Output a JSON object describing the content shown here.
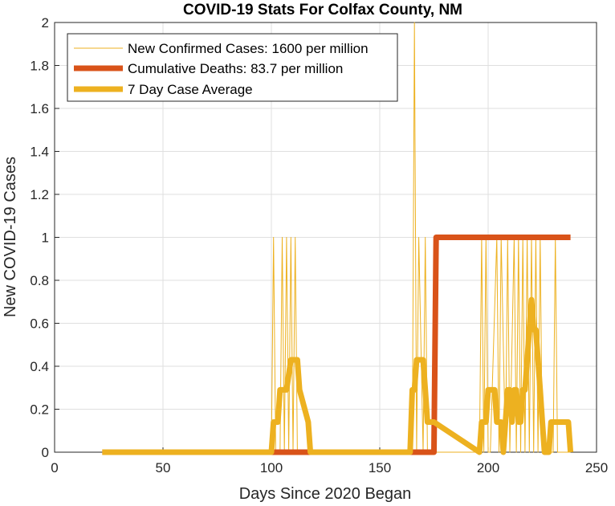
{
  "chart_data": {
    "type": "line",
    "title": "COVID-19 Stats For Colfax County, NM",
    "xlabel": "Days Since 2020 Began",
    "ylabel": "New COVID-19 Cases",
    "xlim": [
      0,
      250
    ],
    "ylim": [
      0,
      2
    ],
    "xticks": [
      0,
      50,
      100,
      150,
      200,
      250
    ],
    "xtick_labels": [
      "0",
      "50",
      "100",
      "150",
      "200",
      "250"
    ],
    "yticks": [
      0,
      0.2,
      0.4,
      0.6,
      0.8,
      1,
      1.2,
      1.4,
      1.6,
      1.8,
      2
    ],
    "ytick_labels": [
      "0",
      "0.2",
      "0.4",
      "0.6",
      "0.8",
      "1",
      "1.2",
      "1.4",
      "1.6",
      "1.8",
      "2"
    ],
    "grid": true,
    "legend_position": "top-left",
    "series": [
      {
        "name": "New Confirmed Cases: 1600 per million",
        "color": "#EDB120",
        "style": "thin",
        "x": [
          22,
          100,
          101,
          102,
          104,
          105,
          106,
          107,
          108,
          109,
          110,
          111,
          112,
          165,
          166,
          167,
          168,
          170,
          171,
          172,
          196,
          197,
          198,
          199,
          200,
          201,
          204,
          205,
          206,
          208,
          209,
          210,
          212,
          213,
          214,
          215,
          216,
          217,
          218,
          219,
          220,
          221,
          222,
          223,
          224,
          225,
          230,
          231,
          232,
          238
        ],
        "y": [
          0,
          0,
          1,
          0,
          0,
          1,
          0,
          1,
          0,
          1,
          0,
          1,
          0,
          0,
          2,
          0,
          1,
          0,
          1,
          0,
          0,
          1,
          0,
          1,
          0,
          0,
          1,
          0,
          1,
          0,
          1,
          0,
          1,
          0,
          1,
          0,
          1,
          0,
          1,
          0,
          1,
          0,
          1,
          0,
          1,
          0,
          0,
          1,
          0,
          0
        ]
      },
      {
        "name": "Cumulative Deaths: 83.7 per million",
        "color": "#D95319",
        "style": "thick",
        "x": [
          22,
          175,
          176,
          238
        ],
        "y": [
          0,
          0,
          1,
          1
        ]
      },
      {
        "name": "7 Day Case Average",
        "color": "#EDB120",
        "style": "thick",
        "x": [
          22,
          100,
          101,
          103,
          104,
          106,
          107,
          109,
          110,
          112,
          113,
          117,
          118,
          164,
          165,
          166,
          167,
          168,
          170,
          171,
          172,
          173,
          174,
          175,
          196,
          197,
          198,
          199,
          200,
          201,
          203,
          204,
          205,
          206,
          207,
          208,
          209,
          210,
          211,
          212,
          213,
          214,
          215,
          216,
          217,
          218,
          219,
          220,
          221,
          222,
          223,
          224,
          225,
          226,
          228,
          229,
          231,
          232,
          237,
          238
        ],
        "y": [
          0,
          0,
          0.14,
          0.14,
          0.29,
          0.29,
          0.29,
          0.43,
          0.43,
          0.43,
          0.29,
          0.14,
          0,
          0,
          0.29,
          0.29,
          0.43,
          0.43,
          0.43,
          0.29,
          0.14,
          0.14,
          0.14,
          0.14,
          0,
          0.14,
          0.14,
          0.14,
          0.29,
          0.29,
          0.29,
          0.14,
          0.14,
          0.14,
          0,
          0.14,
          0.29,
          0.29,
          0.14,
          0.29,
          0.29,
          0.14,
          0.14,
          0.29,
          0.29,
          0.43,
          0.57,
          0.71,
          0.57,
          0.57,
          0.43,
          0.29,
          0.14,
          0,
          0,
          0.14,
          0.14,
          0.14,
          0.14,
          0
        ]
      }
    ]
  }
}
